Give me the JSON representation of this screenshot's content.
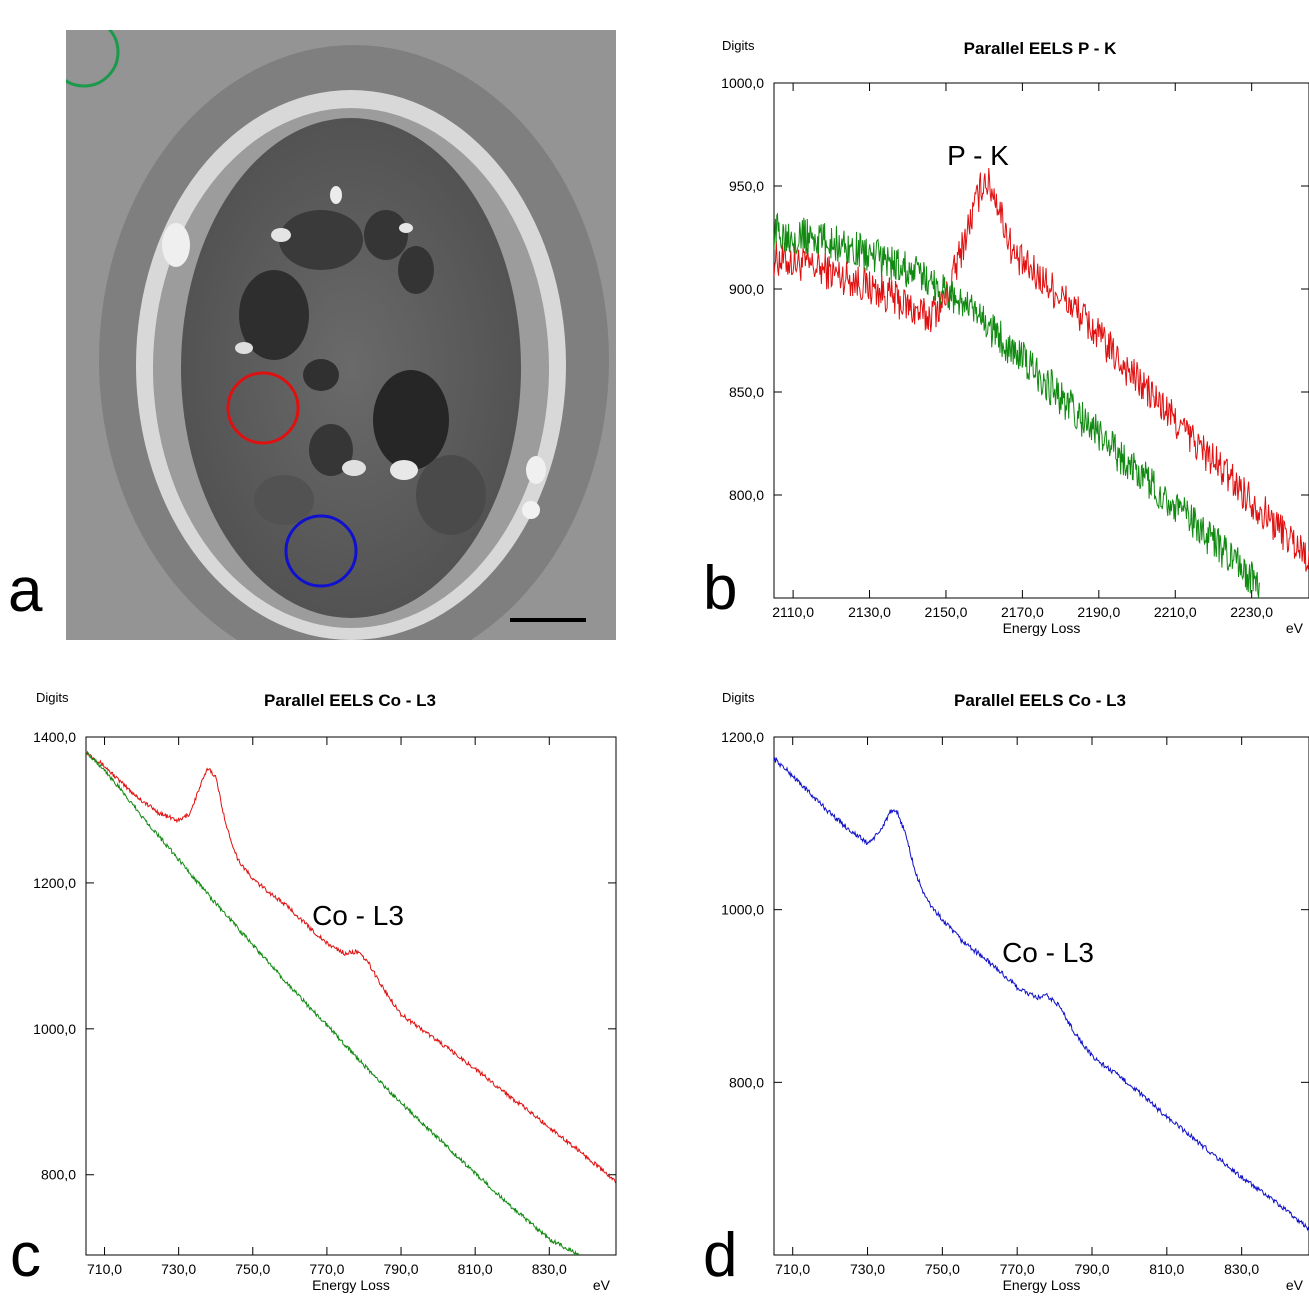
{
  "panels": {
    "a": {
      "letter": "a"
    },
    "b": {
      "letter": "b"
    },
    "c": {
      "letter": "c"
    },
    "d": {
      "letter": "d"
    }
  },
  "colors": {
    "region_green": "#1a9a4a",
    "region_red": "#e01010",
    "region_blue": "#1010d0",
    "series_red": "#e01010",
    "series_green": "#118a11",
    "series_blue": "#1010c8"
  },
  "chart_data": [
    {
      "id": "b",
      "type": "line",
      "title": "Parallel EELS P - K",
      "ylabel": "Digits",
      "xlabel": "Energy Loss",
      "xunit": "eV",
      "annotation": "P - K",
      "xlim": [
        2105,
        2245
      ],
      "ylim": [
        750,
        1000
      ],
      "xticks": [
        "2110,0",
        "2130,0",
        "2150,0",
        "2170,0",
        "2190,0",
        "2210,0",
        "2230,0"
      ],
      "xtick_values": [
        2110,
        2130,
        2150,
        2170,
        2190,
        2210,
        2230
      ],
      "yticks": [
        "800,0",
        "850,0",
        "900,0",
        "950,0",
        "1000,0"
      ],
      "ytick_values": [
        800,
        850,
        900,
        950,
        1000
      ],
      "noise": 9,
      "series": [
        {
          "color": "red",
          "x": [
            2105,
            2115,
            2125,
            2135,
            2145,
            2150,
            2155,
            2160,
            2163,
            2168,
            2175,
            2185,
            2195,
            2205,
            2215,
            2225,
            2235,
            2245
          ],
          "y": [
            915,
            911,
            905,
            897,
            886,
            895,
            925,
            954,
            945,
            915,
            905,
            888,
            866,
            846,
            826,
            807,
            788,
            770
          ]
        },
        {
          "color": "green",
          "x": [
            2105,
            2115,
            2125,
            2135,
            2145,
            2155,
            2165,
            2175,
            2185,
            2195,
            2205,
            2215,
            2225,
            2232
          ],
          "y": [
            928,
            925,
            920,
            913,
            905,
            892,
            875,
            857,
            838,
            820,
            803,
            786,
            768,
            756
          ]
        }
      ]
    },
    {
      "id": "c",
      "type": "line",
      "title": "Parallel EELS Co - L3",
      "ylabel": "Digits",
      "xlabel": "Energy Loss",
      "xunit": "eV",
      "annotation": "Co - L3",
      "xlim": [
        705,
        848
      ],
      "ylim": [
        690,
        1400
      ],
      "xticks": [
        "710,0",
        "730,0",
        "750,0",
        "770,0",
        "790,0",
        "810,0",
        "830,0"
      ],
      "xtick_values": [
        710,
        730,
        750,
        770,
        790,
        810,
        830
      ],
      "yticks": [
        "800,0",
        "1000,0",
        "1200,0",
        "1400,0"
      ],
      "ytick_values": [
        800,
        1000,
        1200,
        1400
      ],
      "noise": 3,
      "series": [
        {
          "color": "red",
          "x": [
            705,
            710,
            715,
            720,
            725,
            730,
            733,
            736,
            738,
            740,
            743,
            746,
            750,
            755,
            760,
            765,
            770,
            775,
            778,
            781,
            785,
            790,
            800,
            810,
            820,
            830,
            840,
            848
          ],
          "y": [
            1380,
            1360,
            1335,
            1313,
            1295,
            1285,
            1295,
            1335,
            1358,
            1345,
            1275,
            1232,
            1205,
            1185,
            1165,
            1140,
            1117,
            1103,
            1106,
            1092,
            1057,
            1020,
            983,
            945,
            905,
            865,
            825,
            790
          ]
        },
        {
          "color": "green",
          "x": [
            705,
            710,
            720,
            730,
            740,
            750,
            760,
            770,
            780,
            790,
            800,
            810,
            820,
            830,
            838
          ],
          "y": [
            1380,
            1355,
            1292,
            1232,
            1172,
            1115,
            1058,
            1005,
            950,
            898,
            850,
            802,
            755,
            712,
            690
          ]
        }
      ]
    },
    {
      "id": "d",
      "type": "line",
      "title": "Parallel EELS Co - L3",
      "ylabel": "Digits",
      "xlabel": "Energy Loss",
      "xunit": "eV",
      "annotation": "Co - L3",
      "xlim": [
        705,
        848
      ],
      "ylim": [
        600,
        1200
      ],
      "xticks": [
        "710,0",
        "730,0",
        "750,0",
        "770,0",
        "790,0",
        "810,0",
        "830,0"
      ],
      "xtick_values": [
        710,
        730,
        750,
        770,
        790,
        810,
        830
      ],
      "yticks": [
        "800,0",
        "1000,0",
        "1200,0"
      ],
      "ytick_values": [
        800,
        1000,
        1200
      ],
      "noise": 3,
      "series": [
        {
          "color": "blue",
          "x": [
            705,
            710,
            715,
            720,
            725,
            730,
            733,
            736,
            738,
            740,
            743,
            746,
            750,
            755,
            760,
            765,
            770,
            775,
            778,
            781,
            785,
            790,
            800,
            810,
            820,
            830,
            840,
            848
          ],
          "y": [
            1175,
            1155,
            1133,
            1112,
            1093,
            1077,
            1088,
            1113,
            1112,
            1090,
            1040,
            1010,
            988,
            965,
            948,
            930,
            910,
            898,
            900,
            890,
            860,
            830,
            798,
            760,
            725,
            690,
            658,
            630
          ]
        }
      ]
    }
  ]
}
